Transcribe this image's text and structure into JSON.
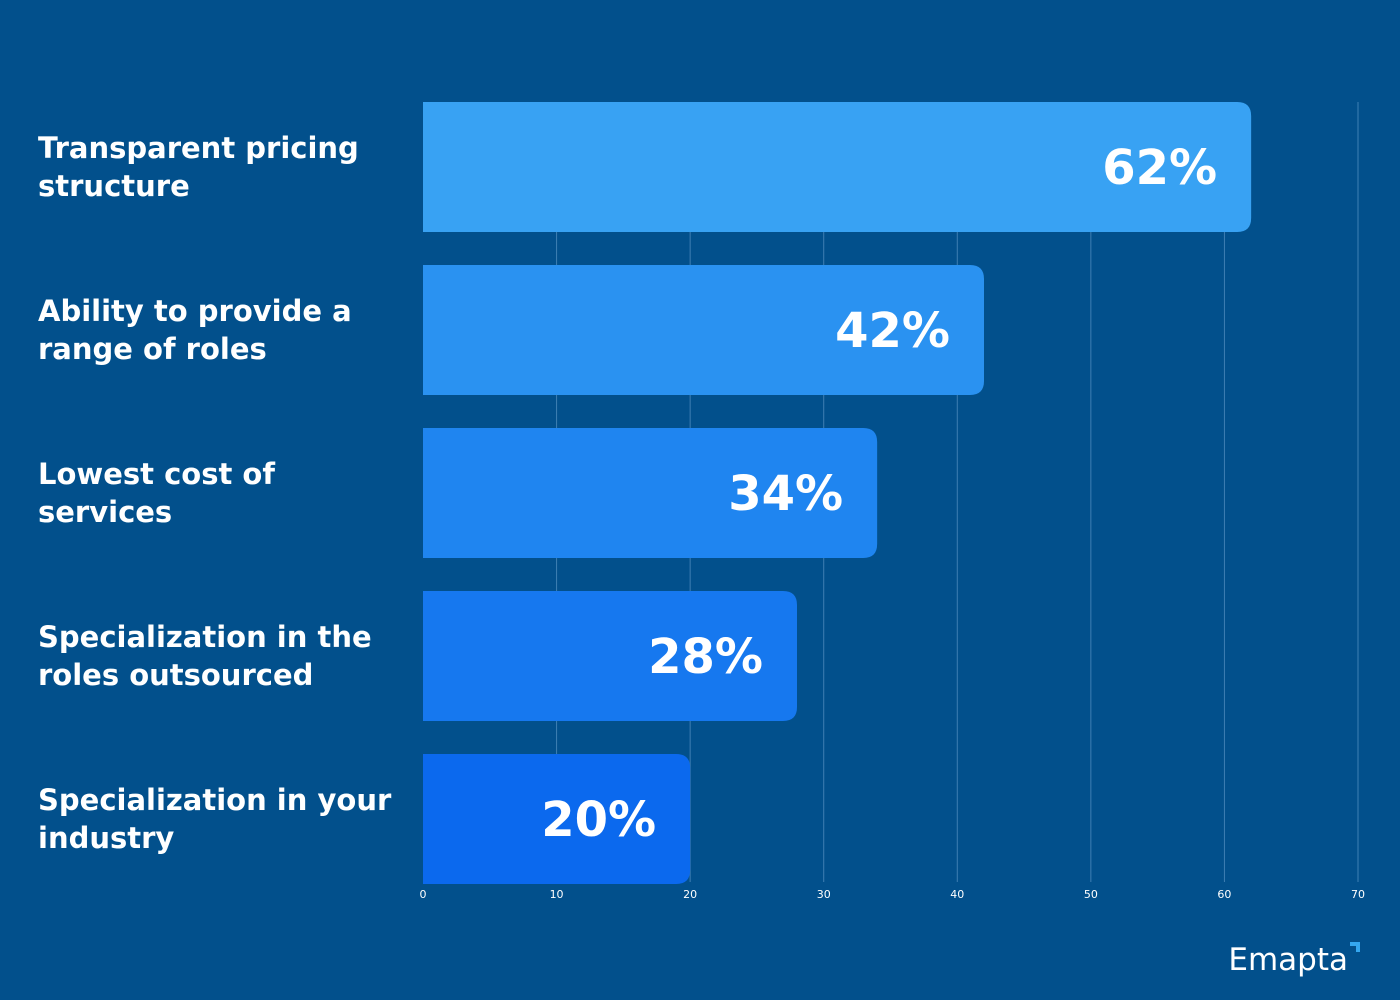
{
  "chart_data": {
    "type": "bar",
    "orientation": "horizontal",
    "categories": [
      [
        "Transparent pricing",
        "structure"
      ],
      [
        "Ability to provide a",
        "range of roles"
      ],
      [
        "Lowest cost of",
        "services"
      ],
      [
        "Specialization in the",
        "roles outsourced"
      ],
      [
        "Specialization in your",
        "industry"
      ]
    ],
    "values": [
      62,
      42,
      34,
      28,
      20
    ],
    "value_labels": [
      "62%",
      "42%",
      "34%",
      "28%",
      "20%"
    ],
    "bar_colors": [
      "#38a2f3",
      "#2a92f1",
      "#1f85f0",
      "#1678ef",
      "#0b69ee"
    ],
    "xlim": [
      0,
      70
    ],
    "x_ticks": [
      0,
      10,
      20,
      30,
      40,
      50,
      60,
      70
    ],
    "x_tick_labels": [
      "0",
      "10",
      "20",
      "30",
      "40",
      "50",
      "60",
      "70"
    ],
    "grid": true,
    "background_color": "#02508c"
  },
  "brand": {
    "name": "Emapta"
  }
}
